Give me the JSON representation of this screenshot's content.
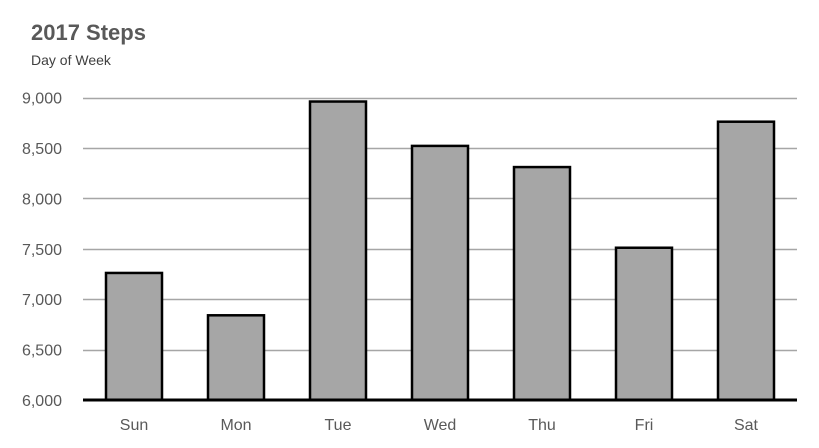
{
  "chart_data": {
    "type": "bar",
    "title": "2017 Steps",
    "subtitle": "Day of Week",
    "xlabel": "",
    "ylabel": "",
    "categories": [
      "Sun",
      "Mon",
      "Tue",
      "Wed",
      "Thu",
      "Fri",
      "Sat"
    ],
    "values": [
      7260,
      6840,
      8960,
      8520,
      8310,
      7510,
      8760
    ],
    "ylim": [
      6000,
      9000
    ],
    "yticks": [
      6000,
      6500,
      7000,
      7500,
      8000,
      8500,
      9000
    ],
    "ytick_labels": [
      "6,000",
      "6,500",
      "7,000",
      "7,500",
      "8,000",
      "8,500",
      "9,000"
    ],
    "grid": true,
    "legend": "none",
    "colors": {
      "bar_fill": "#a6a6a6",
      "bar_stroke": "#000000",
      "gridline": "#a6a6a6",
      "axis": "#000000",
      "title": "#595959",
      "tick_label": "#595959"
    }
  }
}
